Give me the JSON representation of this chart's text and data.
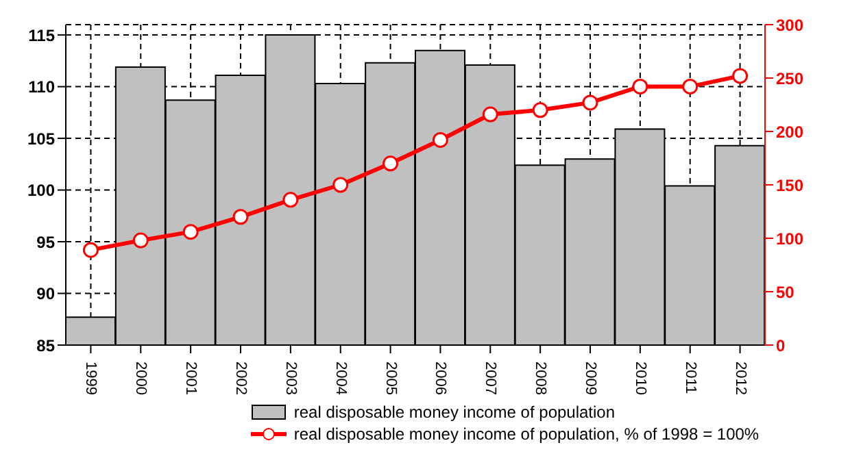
{
  "chart_data": {
    "type": "bar",
    "categories": [
      "1999",
      "2000",
      "2001",
      "2002",
      "2003",
      "2004",
      "2005",
      "2006",
      "2007",
      "2008",
      "2009",
      "2010",
      "2011",
      "2012"
    ],
    "series": [
      {
        "name": "real disposable money income of population",
        "color": "#c0c0c0",
        "values": [
          87.7,
          111.9,
          108.7,
          111.1,
          115.0,
          110.3,
          112.3,
          113.5,
          112.1,
          102.4,
          103.0,
          105.9,
          100.4,
          104.3
        ]
      },
      {
        "name": "real disposable money income of population, % of 1998 = 100%",
        "type": "line",
        "axis": "y2",
        "color": "#ff0000",
        "marker": "circle",
        "values": [
          89,
          98,
          106,
          120,
          136,
          150,
          170,
          192,
          216,
          220,
          227,
          242,
          242,
          252
        ]
      }
    ],
    "ylim": [
      85,
      116
    ],
    "yticks": [
      85,
      90,
      95,
      100,
      105,
      110,
      115
    ],
    "y2lim": [
      0,
      300
    ],
    "y2ticks": [
      0,
      50,
      100,
      150,
      200,
      250,
      300
    ],
    "grid": true,
    "legend": "bottom"
  }
}
